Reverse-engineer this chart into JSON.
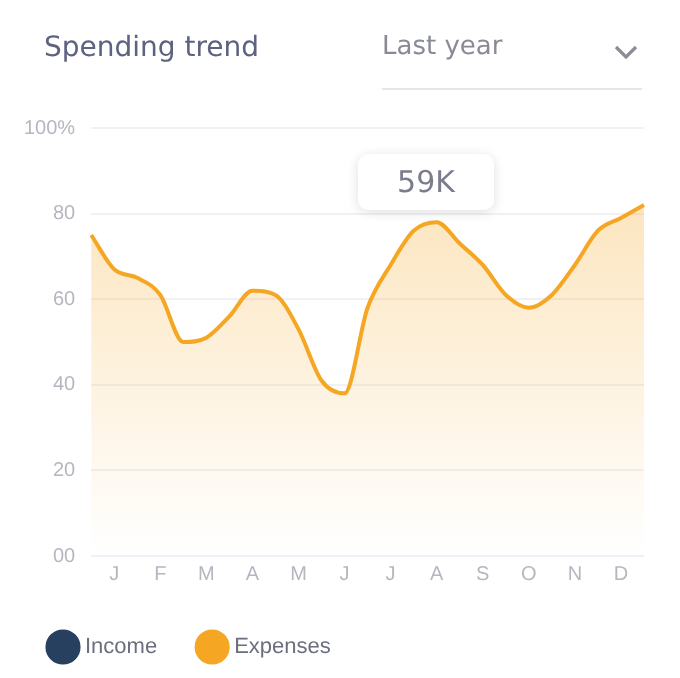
{
  "chart_data": {
    "type": "area",
    "title": "Spending trend",
    "subtitle": "Last year",
    "categories": [
      null,
      "J",
      null,
      "F",
      null,
      "M",
      null,
      "A",
      null,
      "M",
      null,
      "J",
      null,
      "J",
      null,
      "A",
      null,
      "S",
      null,
      "O",
      null,
      "N",
      null,
      "D",
      null
    ],
    "series": [
      {
        "name": "Income",
        "color": "#27405f",
        "values": [
          null,
          null,
          null,
          null,
          null,
          null,
          null,
          null,
          null,
          null,
          null,
          null,
          null,
          null,
          null,
          null,
          null,
          null,
          null,
          null,
          null,
          null,
          null,
          null,
          null
        ]
      },
      {
        "name": "Expenses",
        "color": "#f5a623",
        "values": [
          75,
          67,
          65,
          61,
          50,
          51,
          56,
          62,
          61,
          53,
          41,
          38,
          58,
          68,
          76,
          78,
          73,
          68,
          61,
          58,
          61,
          68,
          76,
          79,
          82
        ]
      }
    ],
    "ylim": [
      0,
      100
    ],
    "yticks": [
      {
        "value": 0,
        "label": "00"
      },
      20,
      40,
      60,
      80,
      {
        "value": 100,
        "label": "100%"
      }
    ],
    "annotations": [
      "59K"
    ],
    "grid": "y",
    "legend": "bottom left",
    "marker": "none",
    "line_style": "solid"
  }
}
